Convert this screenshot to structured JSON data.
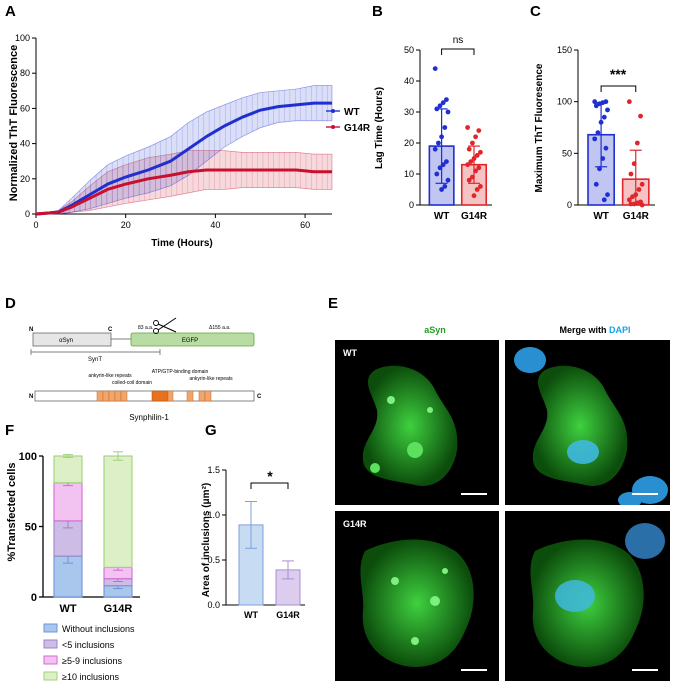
{
  "panels": {
    "A": "A",
    "B": "B",
    "C": "C",
    "D": "D",
    "E": "E",
    "F": "F",
    "G": "G"
  },
  "chart_data": [
    {
      "id": "A",
      "type": "line",
      "xlabel": "Time (Hours)",
      "ylabel": "Normalized ThT Fluorescence",
      "xlim": [
        0,
        66
      ],
      "ylim": [
        0,
        100
      ],
      "xticks": [
        0,
        20,
        40,
        60
      ],
      "yticks": [
        0,
        20,
        40,
        60,
        80,
        100
      ],
      "legend_position": "right",
      "colors": {
        "WT": "#1f2fd0",
        "G14R": "#c8102e"
      },
      "series": [
        {
          "name": "WT",
          "x": [
            0,
            5,
            8,
            12,
            16,
            20,
            25,
            30,
            34,
            38,
            42,
            46,
            50,
            54,
            58,
            62,
            66
          ],
          "mean": [
            0,
            1,
            5,
            11,
            17,
            21,
            25,
            30,
            37,
            44,
            50,
            55,
            59,
            61,
            62,
            63,
            63
          ],
          "sd": [
            0,
            1,
            4,
            8,
            11,
            12,
            13,
            14,
            15,
            14,
            12,
            11,
            10,
            9,
            9,
            10,
            10
          ]
        },
        {
          "name": "G14R",
          "x": [
            0,
            5,
            8,
            12,
            16,
            20,
            25,
            30,
            34,
            38,
            42,
            46,
            50,
            54,
            58,
            62,
            66
          ],
          "mean": [
            0,
            1,
            4,
            9,
            14,
            17,
            20,
            22,
            24,
            25,
            25,
            25,
            25,
            25,
            25,
            24,
            24
          ],
          "sd": [
            0,
            1,
            3,
            7,
            10,
            11,
            12,
            12,
            12,
            11,
            11,
            10,
            10,
            10,
            10,
            10,
            10
          ]
        }
      ]
    },
    {
      "id": "B",
      "type": "bar",
      "ylabel": "Lag Time (Hours)",
      "ylim": [
        0,
        50
      ],
      "yticks": [
        0,
        10,
        20,
        30,
        40,
        50
      ],
      "categories": [
        "WT",
        "G14R"
      ],
      "means": [
        19,
        13
      ],
      "sd": [
        12,
        6
      ],
      "points": [
        [
          44,
          34,
          33,
          32,
          31,
          30,
          25,
          22,
          20,
          18,
          14,
          13,
          12,
          10,
          8,
          6,
          5
        ],
        [
          25,
          24,
          22,
          20,
          18,
          17,
          16,
          15,
          14,
          13,
          12,
          11,
          9,
          8,
          6,
          5,
          3
        ]
      ],
      "significance": "ns",
      "colors": {
        "WT": "#1f2fd0",
        "G14R": "#e0262b"
      }
    },
    {
      "id": "C",
      "type": "bar",
      "ylabel": "Maximum ThT Fluoresence",
      "ylim": [
        0,
        150
      ],
      "yticks": [
        0,
        50,
        100,
        150
      ],
      "categories": [
        "WT",
        "G14R"
      ],
      "means": [
        68,
        25
      ],
      "sd": [
        31,
        28
      ],
      "points": [
        [
          100,
          100,
          99,
          98,
          96,
          92,
          85,
          80,
          70,
          64,
          55,
          45,
          35,
          20,
          10,
          5
        ],
        [
          100,
          86,
          60,
          40,
          30,
          20,
          15,
          10,
          8,
          5,
          3,
          2,
          1,
          1,
          0
        ]
      ],
      "significance": "***",
      "colors": {
        "WT": "#1f2fd0",
        "G14R": "#e0262b"
      }
    },
    {
      "id": "F",
      "type": "bar",
      "ylabel": "%Transfected cells",
      "ylim": [
        0,
        100
      ],
      "yticks": [
        0,
        50,
        100
      ],
      "categories": [
        "WT",
        "G14R"
      ],
      "stacked": true,
      "series": [
        {
          "name": "Without inclusions",
          "values": [
            29,
            8
          ],
          "err": [
            5,
            2
          ],
          "color": "#a9c6ec",
          "edge": "#6e94d8"
        },
        {
          "name": "<5 inclusions",
          "values": [
            25,
            5
          ],
          "err": [
            5,
            2
          ],
          "color": "#cdbde6",
          "edge": "#9a84c6"
        },
        {
          "name": "≥5-9 inclusions",
          "values": [
            27,
            8
          ],
          "err": [
            2,
            2
          ],
          "color": "#f2c2f0",
          "edge": "#d56ad2"
        },
        {
          "name": "≥10 inclusions",
          "values": [
            19,
            79
          ],
          "err": [
            1,
            3
          ],
          "color": "#dcefc6",
          "edge": "#a2d07a"
        }
      ]
    },
    {
      "id": "G",
      "type": "bar",
      "ylabel": "Area of inclusions (μm²)",
      "ylim": [
        0,
        1.5
      ],
      "yticks": [
        "0.0",
        "0.5",
        "1.0",
        "1.5"
      ],
      "categories": [
        "WT",
        "G14R"
      ],
      "means": [
        0.89,
        0.39
      ],
      "sd": [
        0.26,
        0.1
      ],
      "significance": "*",
      "colors": {
        "WT": "#c7dbf3",
        "G14R": "#dccdee"
      },
      "edges": {
        "WT": "#7ea2dc",
        "G14R": "#a88fcf"
      }
    }
  ],
  "diagram_D": {
    "top_N": "N",
    "top_C": "C",
    "asyn": "αSyn",
    "aa83": "83 a.a.",
    "aa155": "Δ155 a.a.",
    "egfp": "EGFP",
    "synt": "SynT",
    "ankyrin1": "ankyrin-like repeats",
    "coiled": "coiled-coil domain",
    "atp": "ATP/GTP-binding domain",
    "ankyrin2": "ankyrin-like repeats",
    "bot_N": "N",
    "bot_C": "C",
    "synphilin": "Synphilin-1"
  },
  "panel_E": {
    "col1_title": "aSyn",
    "col2_title_a": "Merge with ",
    "col2_title_b": "DAPI",
    "row1": "WT",
    "row2": "G14R"
  }
}
